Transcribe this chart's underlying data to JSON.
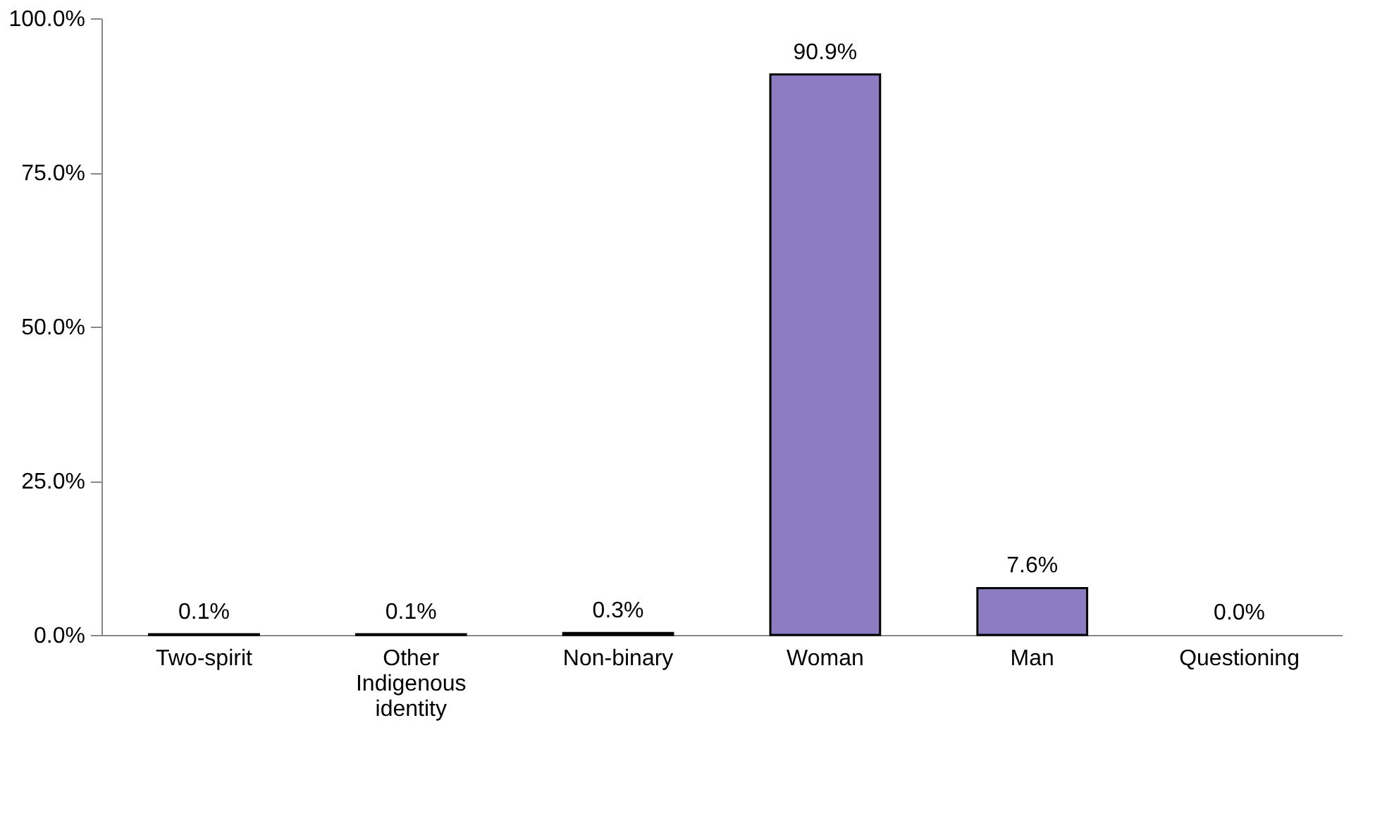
{
  "chart_data": {
    "type": "bar",
    "categories": [
      "Two-spirit",
      "Other Indigenous identity",
      "Non-binary",
      "Woman",
      "Man",
      "Questioning"
    ],
    "values": [
      0.1,
      0.1,
      0.3,
      90.9,
      7.6,
      0.0
    ],
    "value_labels": [
      "0.1%",
      "0.1%",
      "0.3%",
      "90.9%",
      "7.6%",
      "0.0%"
    ],
    "color": "#8e7cc3",
    "ylim": [
      0,
      100
    ],
    "yticks": [
      {
        "value": 0,
        "label": "0.0%"
      },
      {
        "value": 25,
        "label": "25.0%"
      },
      {
        "value": 50,
        "label": "50.0%"
      },
      {
        "value": 75,
        "label": "75.0%"
      },
      {
        "value": 100,
        "label": "100.0%"
      }
    ],
    "grid": false
  }
}
